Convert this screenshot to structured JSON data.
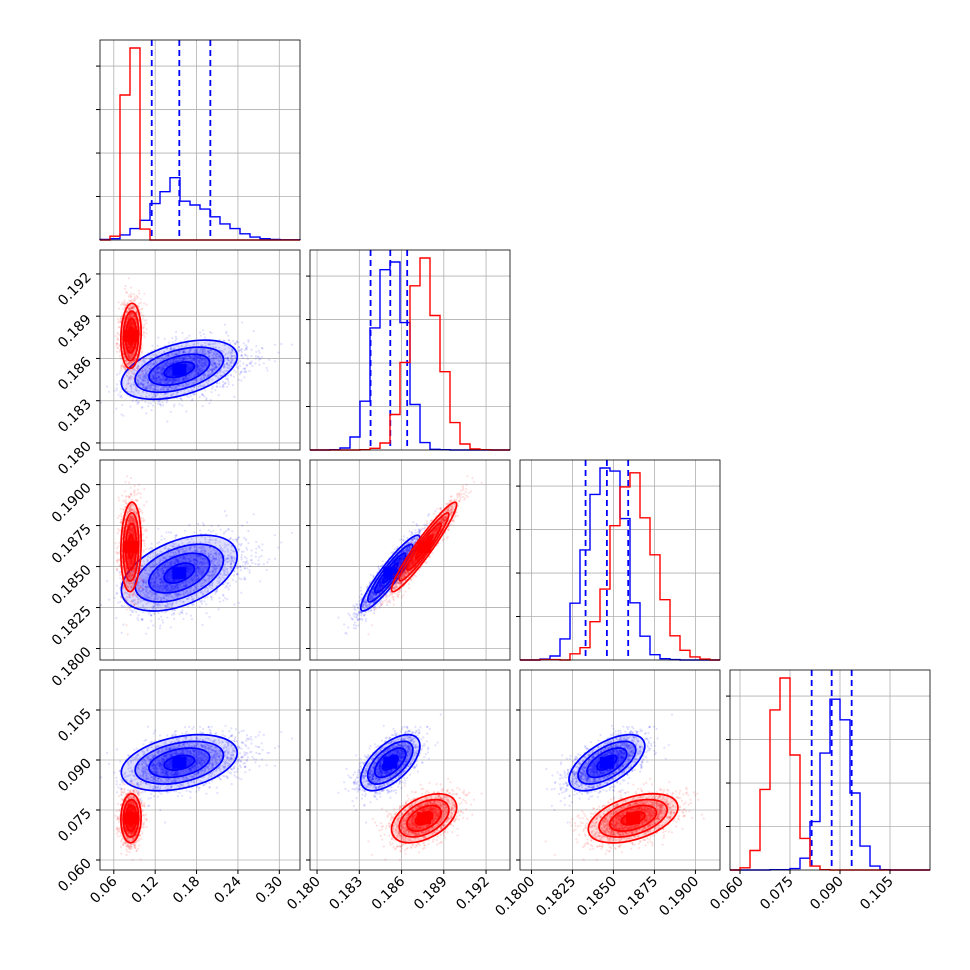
{
  "colors": {
    "blue": "#0000ff",
    "red": "#ff0000",
    "grid": "#b0b0b0"
  },
  "chart_data": {
    "type": "corner",
    "parameters": [
      {
        "range": [
          0.04,
          0.33
        ],
        "ticks": [
          "0.06",
          "0.12",
          "0.18",
          "0.24",
          "0.30"
        ],
        "tick_values": [
          0.06,
          0.12,
          0.18,
          0.24,
          0.3
        ]
      },
      {
        "range": [
          0.1795,
          0.1937
        ],
        "ticks": [
          "0.180",
          "0.183",
          "0.186",
          "0.189",
          "0.192"
        ],
        "tick_values": [
          0.18,
          0.183,
          0.186,
          0.189,
          0.192
        ]
      },
      {
        "range": [
          0.1793,
          0.1915
        ],
        "ticks": [
          "0.1800",
          "0.1825",
          "0.1850",
          "0.1875",
          "0.1900"
        ],
        "tick_values": [
          0.18,
          0.1825,
          0.185,
          0.1875,
          0.19
        ]
      },
      {
        "range": [
          0.057,
          0.117
        ],
        "ticks": [
          "0.060",
          "0.075",
          "0.090",
          "0.105"
        ],
        "tick_values": [
          0.06,
          0.075,
          0.09,
          0.105
        ]
      }
    ],
    "series": [
      {
        "color": "#0000ff",
        "mean": [
          0.155,
          0.1852,
          0.1846,
          0.0892
        ],
        "std": [
          0.04,
          0.001,
          0.0011,
          0.004
        ],
        "quantiles": [
          [
            0.115,
            0.155,
            0.2
          ],
          [
            0.1838,
            0.1852,
            0.1864
          ],
          [
            0.1833,
            0.1846,
            0.1859
          ],
          [
            0.0815,
            0.0875,
            0.0935
          ]
        ],
        "correlation": [
          [
            1,
            0.45,
            0.45,
            0.35
          ],
          [
            0.45,
            1,
            0.92,
            0.6
          ],
          [
            0.45,
            0.92,
            1,
            0.6
          ],
          [
            0.35,
            0.6,
            0.6,
            1
          ]
        ]
      },
      {
        "color": "#ff0000",
        "mean": [
          0.085,
          0.1876,
          0.1862,
          0.0725
        ],
        "std": [
          0.007,
          0.0011,
          0.0013,
          0.0035
        ],
        "quantiles": [],
        "correlation": [
          [
            1,
            0.1,
            0.1,
            0.05
          ],
          [
            0.1,
            1,
            0.95,
            0.45
          ],
          [
            0.1,
            0.95,
            1,
            0.45
          ],
          [
            0.05,
            0.45,
            0.45,
            1
          ]
        ]
      }
    ],
    "grid": true
  }
}
